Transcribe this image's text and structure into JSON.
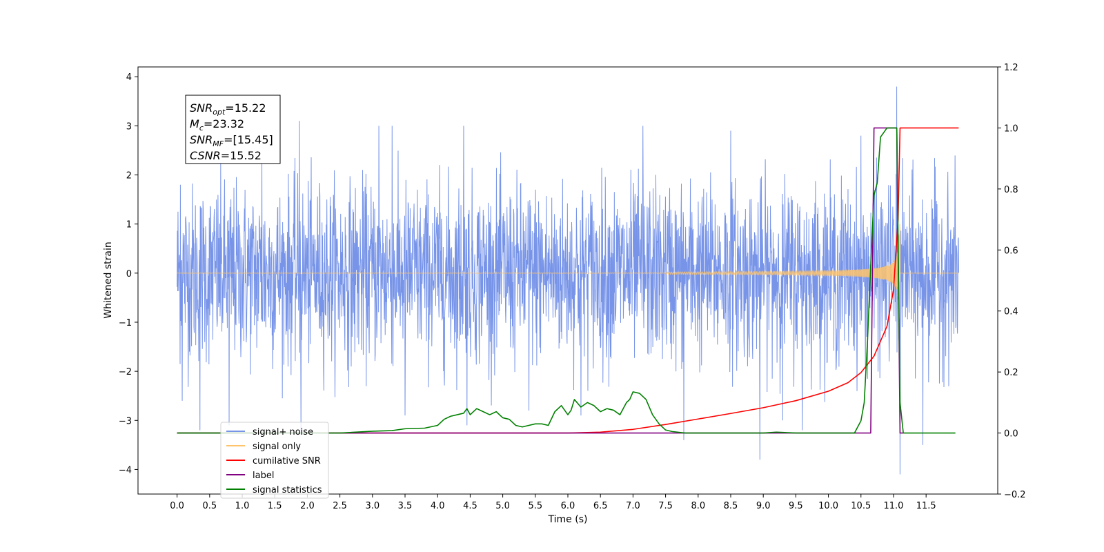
{
  "chart_data": {
    "type": "line",
    "xlabel": "Time (s)",
    "ylabel_left": "Whitened strain",
    "ylabel_right": "",
    "xlim": [
      -0.6,
      12.6
    ],
    "ylim_left": [
      -4.5,
      4.2
    ],
    "ylim_right": [
      -0.2,
      1.2
    ],
    "x_ticks": [
      "0.0",
      "0.5",
      "1.0",
      "1.5",
      "2.0",
      "2.5",
      "3.0",
      "3.5",
      "4.0",
      "4.5",
      "5.0",
      "5.5",
      "6.0",
      "6.5",
      "7.0",
      "7.5",
      "8.0",
      "8.5",
      "9.0",
      "9.5",
      "10.0",
      "10.5",
      "11.0",
      "11.5"
    ],
    "y_ticks_left": [
      "−4",
      "−3",
      "−2",
      "−1",
      "0",
      "1",
      "2",
      "3",
      "4"
    ],
    "y_ticks_right": [
      "−0.2",
      "0.0",
      "0.2",
      "0.4",
      "0.6",
      "0.8",
      "1.0",
      "1.2"
    ],
    "grid": false,
    "legend_position": "lower-left",
    "stats_box": {
      "lines": [
        {
          "main": "SNR",
          "sub": "opt",
          "value": "=15.22"
        },
        {
          "main": "M",
          "sub": "c",
          "value": "=23.32"
        },
        {
          "main": "SNR",
          "sub": "MF",
          "value": "=[15.45]"
        },
        {
          "main": "CSNR",
          "sub": "",
          "value": "=15.52"
        }
      ]
    },
    "legend": [
      {
        "label": "signal+ noise",
        "color": "#7794e8"
      },
      {
        "label": "signal only",
        "color": "#ffc46b"
      },
      {
        "label": "cumilative SNR",
        "color": "#ff0000"
      },
      {
        "label": "label",
        "color": "#800080"
      },
      {
        "label": "signal statistics",
        "color": "#008000"
      }
    ],
    "series": [
      {
        "name": "signal+ noise",
        "axis": "left",
        "color": "#7794e8",
        "description": "whitened noise, approx ±1.5 typical amplitude, extremes near ±3",
        "x_range": [
          0.0,
          12.0
        ],
        "spikes": [
          [
            0.05,
            1.8
          ],
          [
            0.08,
            -2.6
          ],
          [
            0.35,
            -3.2
          ],
          [
            0.8,
            -3.1
          ],
          [
            1.3,
            2.4
          ],
          [
            1.88,
            3.1
          ],
          [
            1.9,
            -3.3
          ],
          [
            3.1,
            3.0
          ],
          [
            3.3,
            3.0
          ],
          [
            3.5,
            -2.9
          ],
          [
            4.4,
            3.0
          ],
          [
            4.45,
            -3.1
          ],
          [
            5.4,
            -2.8
          ],
          [
            6.2,
            -2.9
          ],
          [
            7.15,
            3.0
          ],
          [
            7.78,
            -3.4
          ],
          [
            8.5,
            2.9
          ],
          [
            8.95,
            -3.8
          ],
          [
            9.3,
            -3.0
          ],
          [
            9.6,
            -3.2
          ],
          [
            10.5,
            2.8
          ],
          [
            11.05,
            3.8
          ],
          [
            11.1,
            -4.1
          ],
          [
            11.45,
            -3.5
          ]
        ]
      },
      {
        "name": "signal only",
        "axis": "left",
        "color": "#ffc46b",
        "description": "chirp, near-zero until ~8 s, amplitude grows to ~1 near 11.1 s merger, then zero",
        "x_range": [
          0.0,
          12.0
        ],
        "merger_time": 11.1
      },
      {
        "name": "cumilative SNR",
        "axis": "right",
        "color": "#ff0000",
        "x": [
          0.0,
          6.0,
          6.5,
          7.0,
          7.5,
          8.0,
          8.5,
          9.0,
          9.5,
          10.0,
          10.3,
          10.5,
          10.7,
          10.9,
          11.0,
          11.07,
          11.1,
          12.0
        ],
        "y": [
          0.0,
          0.0,
          0.003,
          0.012,
          0.028,
          0.046,
          0.064,
          0.083,
          0.106,
          0.137,
          0.165,
          0.198,
          0.252,
          0.35,
          0.47,
          0.7,
          1.0,
          1.0
        ]
      },
      {
        "name": "label",
        "axis": "right",
        "color": "#800080",
        "x": [
          0.0,
          10.65,
          10.7,
          11.05,
          11.1,
          11.15
        ],
        "y": [
          0.0,
          0.0,
          1.0,
          1.0,
          0.0,
          0.0
        ]
      },
      {
        "name": "signal statistics",
        "axis": "right",
        "color": "#008000",
        "x": [
          0.0,
          2.5,
          3.0,
          3.3,
          3.5,
          3.8,
          4.0,
          4.1,
          4.2,
          4.3,
          4.4,
          4.45,
          4.5,
          4.6,
          4.7,
          4.8,
          4.9,
          5.0,
          5.1,
          5.2,
          5.3,
          5.4,
          5.5,
          5.6,
          5.7,
          5.8,
          5.9,
          6.0,
          6.05,
          6.1,
          6.2,
          6.3,
          6.4,
          6.5,
          6.6,
          6.7,
          6.8,
          6.9,
          6.95,
          7.0,
          7.1,
          7.2,
          7.3,
          7.4,
          7.5,
          7.6,
          7.8,
          8.0,
          9.0,
          9.2,
          9.3,
          9.5,
          10.0,
          10.4,
          10.5,
          10.55,
          10.6,
          10.65,
          10.7,
          10.75,
          10.8,
          10.9,
          11.0,
          11.05,
          11.1,
          11.15,
          11.95
        ],
        "y": [
          0.0,
          0.0,
          0.006,
          0.008,
          0.014,
          0.016,
          0.025,
          0.045,
          0.055,
          0.06,
          0.065,
          0.08,
          0.06,
          0.08,
          0.07,
          0.06,
          0.07,
          0.05,
          0.045,
          0.025,
          0.02,
          0.025,
          0.03,
          0.03,
          0.025,
          0.07,
          0.09,
          0.06,
          0.075,
          0.11,
          0.085,
          0.1,
          0.09,
          0.07,
          0.08,
          0.075,
          0.06,
          0.1,
          0.11,
          0.135,
          0.13,
          0.11,
          0.06,
          0.03,
          0.01,
          0.005,
          0.0,
          0.0,
          0.0,
          0.003,
          0.002,
          0.0,
          0.0,
          0.0,
          0.04,
          0.1,
          0.3,
          0.55,
          0.78,
          0.82,
          0.97,
          1.0,
          1.0,
          1.0,
          0.1,
          0.0,
          0.0
        ]
      }
    ]
  }
}
